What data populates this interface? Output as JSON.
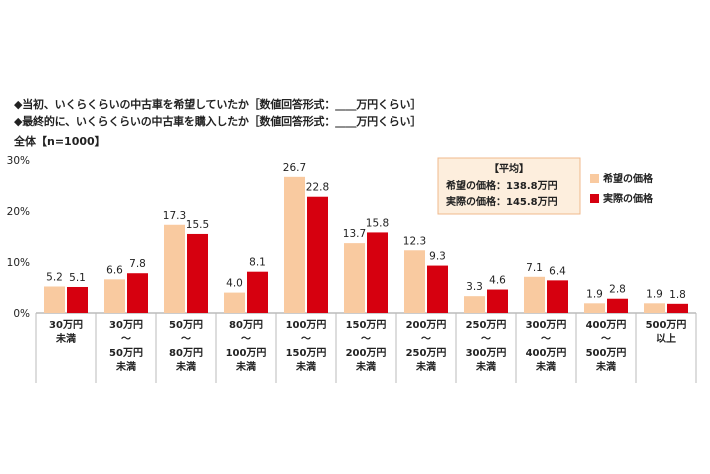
{
  "questions": {
    "q1": "◆当初、いくらくらいの中古車を希望していたか［数値回答形式：____万円くらい］",
    "q2": "◆最終的に、いくらくらいの中古車を購入したか［数値回答形式：____万円くらい］"
  },
  "sample_label": "全体【n=1000】",
  "colors": {
    "desired": "#f9caa0",
    "actual": "#d6000f"
  },
  "average_box": {
    "title": "【平均】",
    "desired": "希望の価格：138.8万円",
    "actual": "実際の価格：145.8万円"
  },
  "chart_data": {
    "type": "bar",
    "categories": [
      [
        "30万円",
        "未満"
      ],
      [
        "30万円",
        "～",
        "50万円",
        "未満"
      ],
      [
        "50万円",
        "～",
        "80万円",
        "未満"
      ],
      [
        "80万円",
        "～",
        "100万円",
        "未満"
      ],
      [
        "100万円",
        "～",
        "150万円",
        "未満"
      ],
      [
        "150万円",
        "～",
        "200万円",
        "未満"
      ],
      [
        "200万円",
        "～",
        "250万円",
        "未満"
      ],
      [
        "250万円",
        "～",
        "300万円",
        "未満"
      ],
      [
        "300万円",
        "～",
        "400万円",
        "未満"
      ],
      [
        "400万円",
        "～",
        "500万円",
        "未満"
      ],
      [
        "500万円",
        "以上"
      ]
    ],
    "series": [
      {
        "name": "希望の価格",
        "values": [
          5.2,
          6.6,
          17.3,
          4.0,
          26.7,
          13.7,
          12.3,
          3.3,
          7.1,
          1.9,
          1.9
        ]
      },
      {
        "name": "実際の価格",
        "values": [
          5.1,
          7.8,
          15.5,
          8.1,
          22.8,
          15.8,
          9.3,
          4.6,
          6.4,
          2.8,
          1.8
        ]
      }
    ],
    "value_labels": [
      [
        "5.2",
        "6.6",
        "17.3",
        "4.0",
        "26.7",
        "13.7",
        "12.3",
        "3.3",
        "7.1",
        "1.9",
        "1.9"
      ],
      [
        "5.1",
        "7.8",
        "15.5",
        "8.1",
        "22.8",
        "15.8",
        "9.3",
        "4.6",
        "6.4",
        "2.8",
        "1.8"
      ]
    ],
    "yticks": [
      "0%",
      "10%",
      "20%",
      "30%"
    ],
    "ytick_values": [
      0,
      10,
      20,
      30
    ],
    "ylim": [
      0,
      30
    ],
    "grid": false,
    "legend_position": "top-right"
  }
}
